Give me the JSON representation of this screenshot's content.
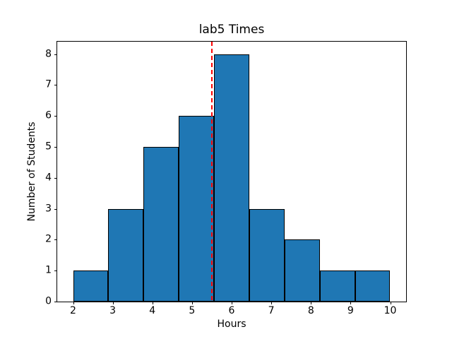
{
  "chart_data": {
    "type": "bar",
    "subtype": "histogram",
    "title": "lab5 Times",
    "xlabel": "Hours",
    "ylabel": "Number of Students",
    "bin_edges": [
      2,
      2.8889,
      3.7778,
      4.6667,
      5.5556,
      6.4444,
      7.3333,
      8.2222,
      9.1111,
      10
    ],
    "counts": [
      1,
      3,
      5,
      6,
      8,
      3,
      2,
      1,
      1
    ],
    "xlim": [
      1.6,
      10.4
    ],
    "ylim": [
      0,
      8.4
    ],
    "xticks": [
      2,
      3,
      4,
      5,
      6,
      7,
      8,
      9,
      10
    ],
    "yticks": [
      0,
      1,
      2,
      3,
      4,
      5,
      6,
      7,
      8
    ],
    "grid": false,
    "legend": "none",
    "bar_color": "#1f77b4",
    "bar_edge_color": "#000000",
    "background_color": "#ffffff",
    "vline": {
      "x": 5.5,
      "color": "#ff0000",
      "style": "dashed"
    }
  }
}
